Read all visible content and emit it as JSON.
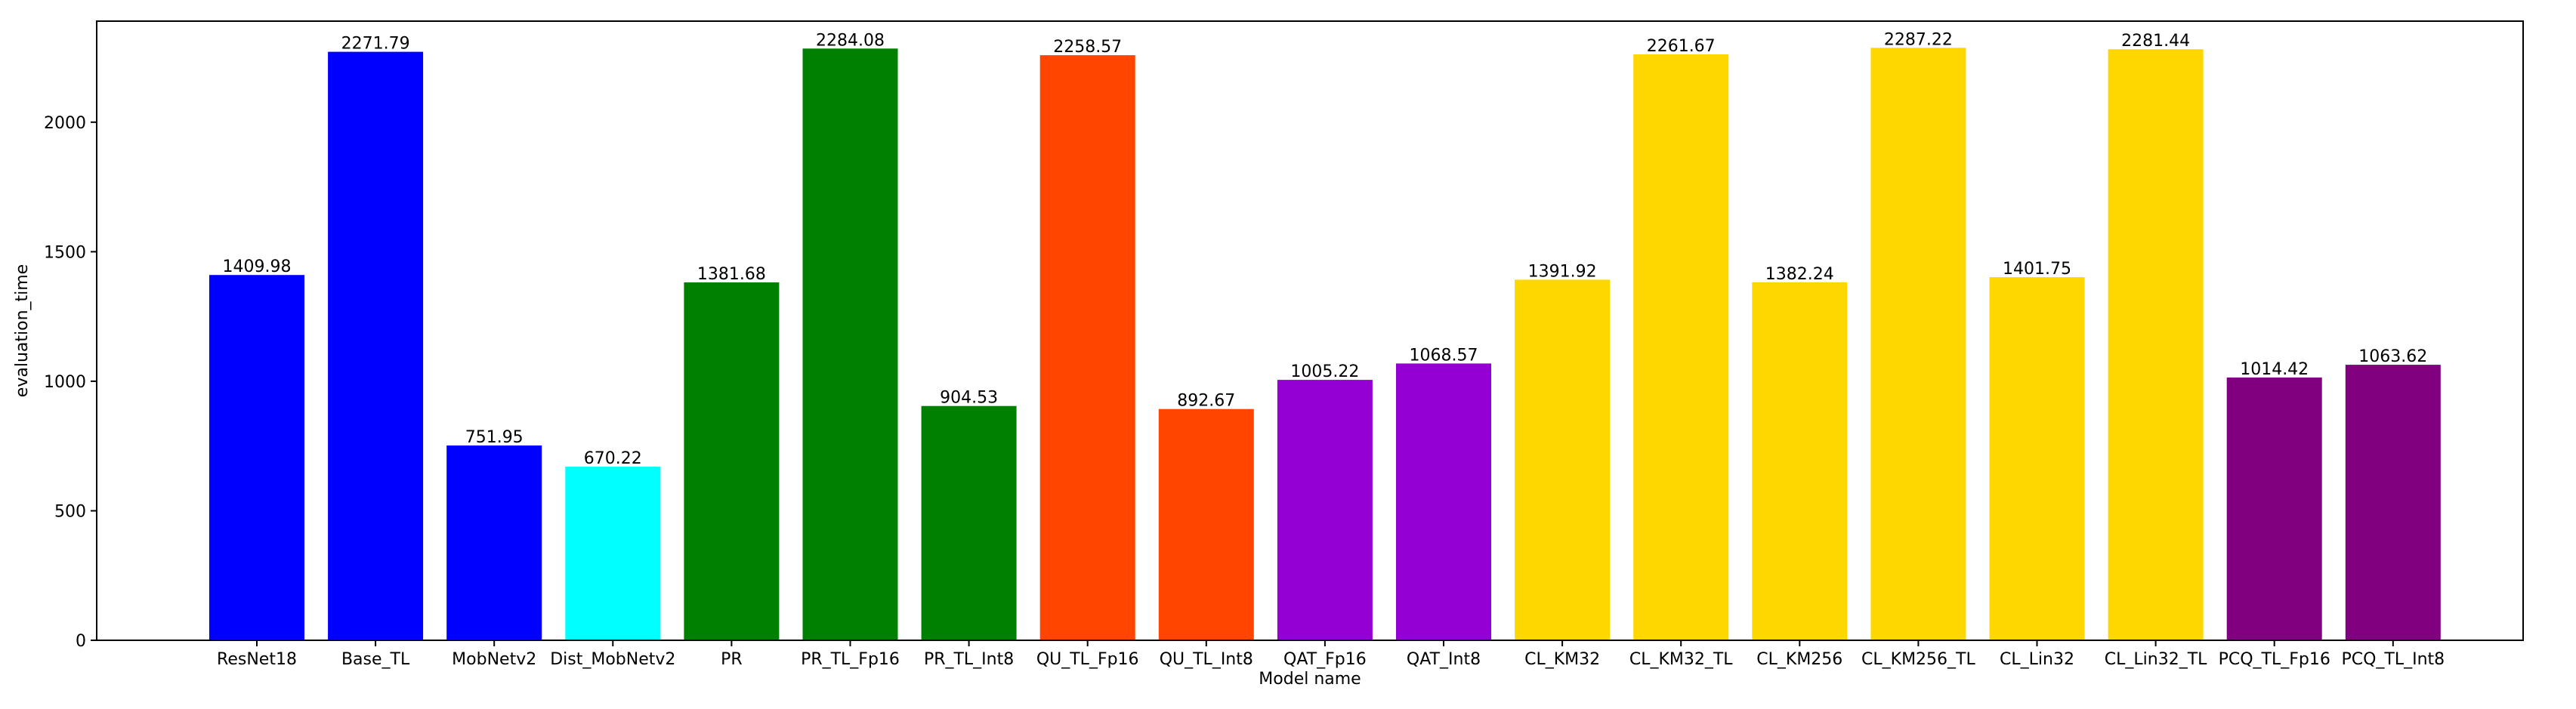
{
  "chart_data": {
    "type": "bar",
    "xlabel": "Model name",
    "ylabel": "evaluation_time",
    "ylim": [
      0,
      2390
    ],
    "yticks": [
      0,
      500,
      1000,
      1500,
      2000
    ],
    "grid": false,
    "categories": [
      "ResNet18",
      "Base_TL",
      "MobNetv2",
      "Dist_MobNetv2",
      "PR",
      "PR_TL_Fp16",
      "PR_TL_Int8",
      "QU_TL_Fp16",
      "QU_TL_Int8",
      "QAT_Fp16",
      "QAT_Int8",
      "CL_KM32",
      "CL_KM32_TL",
      "CL_KM256",
      "CL_KM256_TL",
      "CL_Lin32",
      "CL_Lin32_TL",
      "PCQ_TL_Fp16",
      "PCQ_TL_Int8"
    ],
    "values": [
      1409.98,
      2271.79,
      751.95,
      670.22,
      1381.68,
      2284.08,
      904.53,
      2258.57,
      892.67,
      1005.22,
      1068.57,
      1391.92,
      2261.67,
      1382.24,
      2287.22,
      1401.75,
      2281.44,
      1014.42,
      1063.62
    ],
    "value_labels": [
      "1409.98",
      "2271.79",
      "751.95",
      "670.22",
      "1381.68",
      "2284.08",
      "904.53",
      "2258.57",
      "892.67",
      "1005.22",
      "1068.57",
      "1391.92",
      "2261.67",
      "1382.24",
      "2287.22",
      "1401.75",
      "2281.44",
      "1014.42",
      "1063.62"
    ],
    "colors": [
      "#0000ff",
      "#0000ff",
      "#0000ff",
      "#00ffff",
      "#008000",
      "#008000",
      "#008000",
      "#ff4500",
      "#ff4500",
      "#9400d3",
      "#9400d3",
      "#ffd700",
      "#ffd700",
      "#ffd700",
      "#ffd700",
      "#ffd700",
      "#ffd700",
      "#800080",
      "#800080"
    ]
  }
}
